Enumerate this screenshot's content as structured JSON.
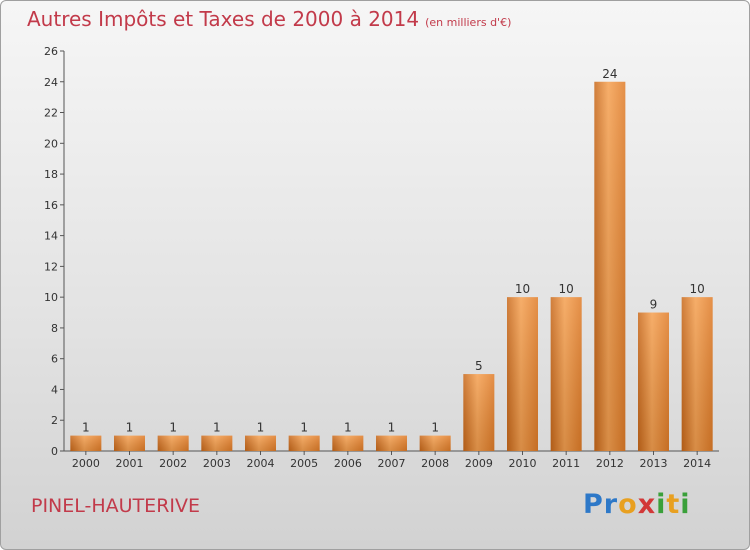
{
  "title": "Autres Impôts et Taxes de 2000 à 2014",
  "unit": "(en milliers d'€)",
  "city": "PINEL-HAUTERIVE",
  "logo": "Proxiti",
  "chart_data": {
    "type": "bar",
    "categories": [
      "2000",
      "2001",
      "2002",
      "2003",
      "2004",
      "2005",
      "2006",
      "2007",
      "2008",
      "2009",
      "2010",
      "2011",
      "2012",
      "2013",
      "2014"
    ],
    "values": [
      1,
      1,
      1,
      1,
      1,
      1,
      1,
      1,
      1,
      5,
      10,
      10,
      24,
      9,
      10
    ],
    "ylim": [
      0,
      26
    ],
    "yticks": [
      0,
      2,
      4,
      6,
      8,
      10,
      12,
      14,
      16,
      18,
      20,
      22,
      24,
      26
    ],
    "grid": false,
    "bar_color": "#f0903a"
  }
}
